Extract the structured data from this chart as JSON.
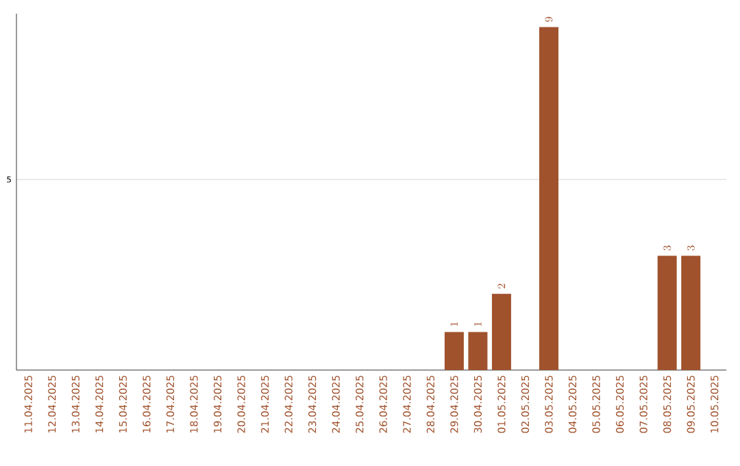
{
  "chart_data": {
    "type": "bar",
    "categories": [
      "11.04.2025",
      "12.04.2025",
      "13.04.2025",
      "14.04.2025",
      "15.04.2025",
      "16.04.2025",
      "17.04.2025",
      "18.04.2025",
      "19.04.2025",
      "20.04.2025",
      "21.04.2025",
      "22.04.2025",
      "23.04.2025",
      "24.04.2025",
      "25.04.2025",
      "26.04.2025",
      "27.04.2025",
      "28.04.2025",
      "29.04.2025",
      "30.04.2025",
      "01.05.2025",
      "02.05.2025",
      "03.05.2025",
      "04.05.2025",
      "05.05.2025",
      "06.05.2025",
      "07.05.2025",
      "08.05.2025",
      "09.05.2025",
      "10.05.2025"
    ],
    "values": [
      null,
      null,
      null,
      null,
      null,
      null,
      null,
      null,
      null,
      null,
      null,
      null,
      null,
      null,
      null,
      null,
      null,
      null,
      1,
      1,
      2,
      null,
      9,
      null,
      null,
      null,
      null,
      3,
      3,
      null
    ],
    "color": "#a0522d",
    "ylim": [
      0,
      9.35
    ],
    "yticks": [
      5
    ],
    "grid": "y",
    "data_labels": true
  }
}
